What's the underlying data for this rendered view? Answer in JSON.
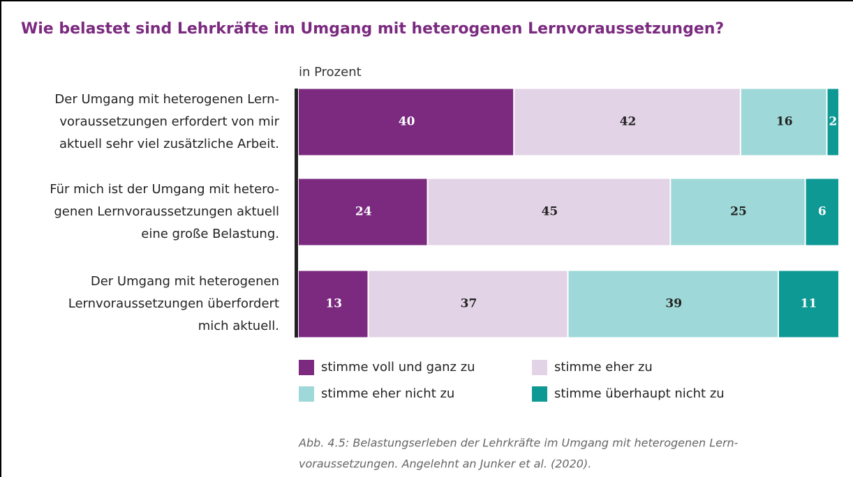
{
  "chart_data": {
    "type": "stacked-bar-horizontal",
    "title": "Wie belastet sind Lehrkräfte im Umgang mit heterogenen Lernvoraussetzungen?",
    "subtitle": "in Prozent",
    "categories": [
      [
        "Der Umgang mit heterogenen Lern-",
        "voraussetzungen erfordert von mir",
        "aktuell sehr viel zusätzliche Arbeit."
      ],
      [
        "Für mich ist der Umgang mit hetero-",
        "genen Lernvoraussetzungen aktuell",
        "eine große Belastung."
      ],
      [
        "Der Umgang mit heterogenen",
        "Lernvoraussetzungen überfordert",
        "mich aktuell."
      ]
    ],
    "series": [
      {
        "name": "stimme voll und ganz zu",
        "color": "#7b2a80",
        "label_color": "#ffffff",
        "values": [
          40,
          24,
          13
        ]
      },
      {
        "name": "stimme eher zu",
        "color": "#e3d3e7",
        "label_color": "#222222",
        "values": [
          42,
          45,
          37
        ]
      },
      {
        "name": "stimme eher nicht zu",
        "color": "#9fd8d8",
        "label_color": "#222222",
        "values": [
          16,
          25,
          39
        ]
      },
      {
        "name": "stimme überhaupt nicht zu",
        "color": "#0e9994",
        "label_color": "#ffffff",
        "values": [
          2,
          6,
          11
        ]
      }
    ],
    "xlim": [
      0,
      100
    ],
    "caption": [
      "Abb. 4.5: Belastungserleben der Lehrkräfte im Umgang mit heterogenen Lern-",
      "voraussetzungen. Angelehnt an Junker et al. (2020)."
    ]
  }
}
